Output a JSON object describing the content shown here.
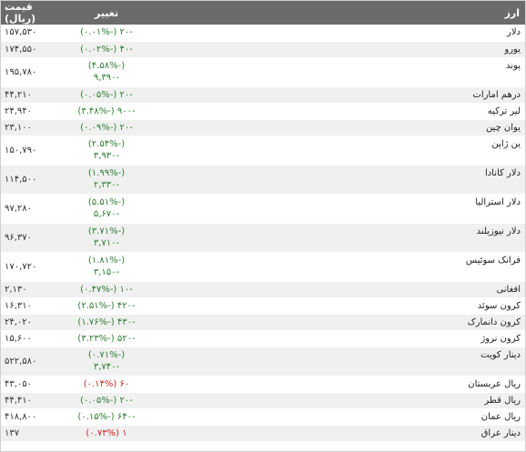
{
  "header": {
    "name": "ارز",
    "change": "تغییر",
    "price": "قیمت (ریال)"
  },
  "rows": [
    {
      "name": "دلار",
      "change": [
        "-۲۰ (-۰.۰۱%)"
      ],
      "price": "۱۵۷,۵۳۰",
      "dir": "pos",
      "h": 18
    },
    {
      "name": "یورو",
      "change": [
        "-۴۰ (-۰.۰۲%)"
      ],
      "price": "۱۷۴,۵۵۰",
      "dir": "pos",
      "h": 18
    },
    {
      "name": "پوند",
      "change": [
        "(-۴.۵۸%)",
        "-۹,۳۹۰"
      ],
      "price": "۱۹۵,۷۸۰",
      "dir": "pos",
      "h": 32
    },
    {
      "name": "درهم امارات",
      "change": [
        "-۲۰ (-۰.۰۵%)"
      ],
      "price": "۴۴,۲۱۰",
      "dir": "pos",
      "h": 18
    },
    {
      "name": "لیر ترکیه",
      "change": [
        "-۹۰۰ (-۳.۴۸%)"
      ],
      "price": "۲۴,۹۴۰",
      "dir": "pos",
      "h": 18
    },
    {
      "name": "یوان چین",
      "change": [
        "-۲۰ (-۰.۰۹%)"
      ],
      "price": "۲۳,۱۰۰",
      "dir": "pos",
      "h": 18
    },
    {
      "name": "ین ژاپن",
      "change": [
        "(-۲.۵۴%)",
        "-۳,۹۳۰"
      ],
      "price": "۱۵۰,۷۹۰",
      "dir": "pos",
      "h": 32
    },
    {
      "name": "دلار کانادا",
      "change": [
        "(-۱.۹۹%)",
        "-۲,۳۳۰"
      ],
      "price": "۱۱۴,۵۰۰",
      "dir": "pos",
      "h": 32
    },
    {
      "name": "دلار استرالیا",
      "change": [
        "(-۵.۵۱%)",
        "-۵,۶۷۰"
      ],
      "price": "۹۷,۲۸۰",
      "dir": "pos",
      "h": 32
    },
    {
      "name": "دلار نیوزیلند",
      "change": [
        "(-۳.۷۱%)",
        "-۳,۷۱۰"
      ],
      "price": "۹۶,۳۷۰",
      "dir": "pos",
      "h": 32
    },
    {
      "name": "فرانک سوئیس",
      "change": [
        "(-۱.۸۱%)",
        "-۳,۱۵۰"
      ],
      "price": "۱۷۰,۷۲۰",
      "dir": "pos",
      "h": 32
    },
    {
      "name": "افغانی",
      "change": [
        "-۱۰ (-۰.۴۷%)"
      ],
      "price": "۲,۱۳۰",
      "dir": "pos",
      "h": 18
    },
    {
      "name": "کرون سوئد",
      "change": [
        "-۴۲۰ (-۲.۵۱%)"
      ],
      "price": "۱۶,۳۱۰",
      "dir": "pos",
      "h": 18
    },
    {
      "name": "کرون دانمارک",
      "change": [
        "-۴۳۰ (-۱.۷۶%)"
      ],
      "price": "۲۴,۰۲۰",
      "dir": "pos",
      "h": 18
    },
    {
      "name": "کرون نروژ",
      "change": [
        "-۵۲۰ (-۳.۲۳%)"
      ],
      "price": "۱۵,۶۰۰",
      "dir": "pos",
      "h": 18
    },
    {
      "name": "دینار کویت",
      "change": [
        "(-۰.۷۱%)",
        "-۳,۷۴۰"
      ],
      "price": "۵۲۲,۵۸۰",
      "dir": "pos",
      "h": 32
    },
    {
      "name": "ریال عربستان",
      "change": [
        "۶۰ (۰.۱۴%)"
      ],
      "price": "۴۳,۰۵۰",
      "dir": "neg",
      "h": 18
    },
    {
      "name": "ریال قطر",
      "change": [
        "-۲۰ (-۰.۰۵%)"
      ],
      "price": "۴۴,۴۱۰",
      "dir": "pos",
      "h": 18
    },
    {
      "name": "ریال عمان",
      "change": [
        "-۶۴۰ (-۰.۱۵%)"
      ],
      "price": "۴۱۸,۸۰۰",
      "dir": "pos",
      "h": 18
    },
    {
      "name": "دینار عراق",
      "change": [
        "۱ (۰.۷۳%)"
      ],
      "price": "۱۳۷",
      "dir": "neg",
      "h": 18
    }
  ]
}
